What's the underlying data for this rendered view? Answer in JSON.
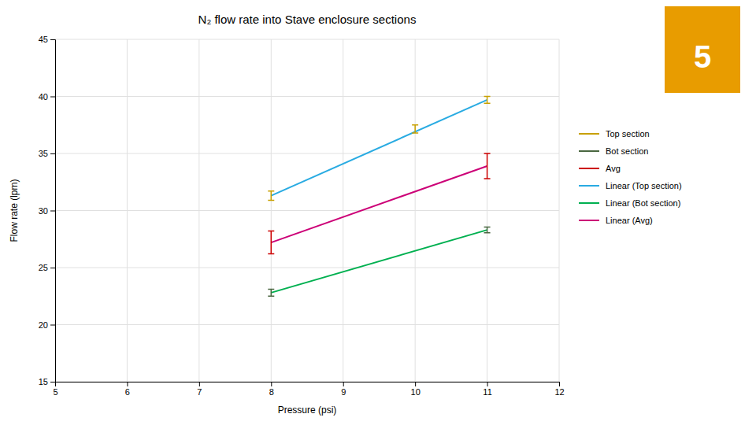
{
  "chart_data": {
    "type": "line",
    "title": "N₂ flow rate into Stave enclosure sections",
    "x_label": "Pressure (psi)",
    "y_label": "Flow rate (lpm)",
    "xlim": [
      5,
      12
    ],
    "ylim": [
      15,
      45
    ],
    "xticks": [
      5,
      6,
      7,
      8,
      9,
      10,
      11,
      12
    ],
    "yticks": [
      15,
      20,
      25,
      30,
      35,
      40,
      45
    ],
    "grid": true,
    "legend": "right",
    "series": [
      {
        "name": "Top section",
        "type": "errorbar",
        "color": "#c8a000",
        "x": [
          8,
          10,
          11
        ],
        "values": [
          31.3,
          37.15,
          39.7
        ],
        "errors": [
          0.4,
          0.35,
          0.3
        ]
      },
      {
        "name": "Bot section",
        "type": "errorbar",
        "color": "#4a6741",
        "x": [
          8,
          11
        ],
        "values": [
          22.8,
          28.3
        ],
        "errors": [
          0.3,
          0.25
        ]
      },
      {
        "name": "Avg",
        "type": "errorbar",
        "color": "#cc0000",
        "x": [
          8,
          11
        ],
        "values": [
          27.2,
          33.9
        ],
        "errors": [
          1.0,
          1.1
        ]
      },
      {
        "name": "Linear (Top section)",
        "type": "line",
        "color": "#29abe2",
        "x": [
          8,
          11
        ],
        "values": [
          31.3,
          39.7
        ]
      },
      {
        "name": "Linear (Bot section)",
        "type": "line",
        "color": "#00b050",
        "x": [
          8,
          11
        ],
        "values": [
          22.8,
          28.3
        ]
      },
      {
        "name": "Linear (Avg)",
        "type": "line",
        "color": "#cc0077",
        "x": [
          8,
          11
        ],
        "values": [
          27.2,
          33.9
        ]
      }
    ],
    "annotations": [
      {
        "text": "5",
        "color": "#e89c00"
      }
    ]
  }
}
